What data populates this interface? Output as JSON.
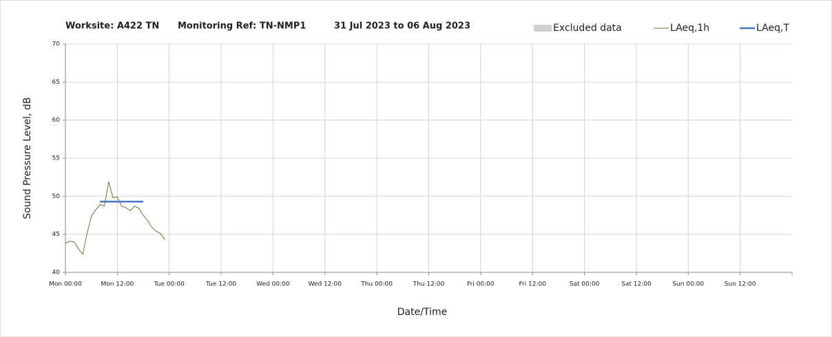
{
  "chart_data": {
    "type": "line",
    "title": [
      "Worksite: A422 TN",
      "Monitoring Ref: TN-NMP1",
      "31 Jul 2023 to 06 Aug 2023"
    ],
    "x_label": "Date/Time",
    "y_label": "Sound Pressure Level, dB",
    "xlim": [
      0,
      168
    ],
    "xticks": [
      {
        "value": 0,
        "label": "Mon 00:00"
      },
      {
        "value": 12,
        "label": "Mon 12:00"
      },
      {
        "value": 24,
        "label": "Tue 00:00"
      },
      {
        "value": 36,
        "label": "Tue 12:00"
      },
      {
        "value": 48,
        "label": "Wed 00:00"
      },
      {
        "value": 60,
        "label": "Wed 12:00"
      },
      {
        "value": 72,
        "label": "Thu 00:00"
      },
      {
        "value": 84,
        "label": "Thu 12:00"
      },
      {
        "value": 96,
        "label": "Fri 00:00"
      },
      {
        "value": 108,
        "label": "Fri 12:00"
      },
      {
        "value": 120,
        "label": "Sat 00:00"
      },
      {
        "value": 132,
        "label": "Sat 12:00"
      },
      {
        "value": 144,
        "label": "Sun 00:00"
      },
      {
        "value": 156,
        "label": "Sun 12:00"
      }
    ],
    "ylim": [
      40,
      70
    ],
    "yticks": [
      40,
      45,
      50,
      55,
      60,
      65,
      70
    ],
    "grid": true,
    "series": [
      {
        "name": "Excluded data",
        "color": "#d0d0d0",
        "x": [],
        "values": []
      },
      {
        "name": "LAeq,1h",
        "color": "#5a7a3a",
        "x": [
          0,
          1,
          2,
          3,
          4,
          5,
          6,
          7,
          8,
          9,
          10,
          11,
          12,
          13,
          14,
          15,
          16,
          17,
          18,
          19,
          20,
          21,
          22,
          23
        ],
        "values": [
          43.8,
          44.1,
          44.0,
          43.1,
          42.4,
          45.1,
          47.4,
          48.2,
          48.9,
          48.7,
          51.9,
          49.8,
          49.9,
          48.7,
          48.5,
          48.1,
          48.7,
          48.4,
          47.5,
          46.8,
          45.9,
          45.4,
          45.1,
          44.3
        ]
      },
      {
        "name": "LAeq,T",
        "color": "#4472c4",
        "x": [
          8,
          18
        ],
        "values": [
          49.3,
          49.3
        ]
      }
    ]
  }
}
